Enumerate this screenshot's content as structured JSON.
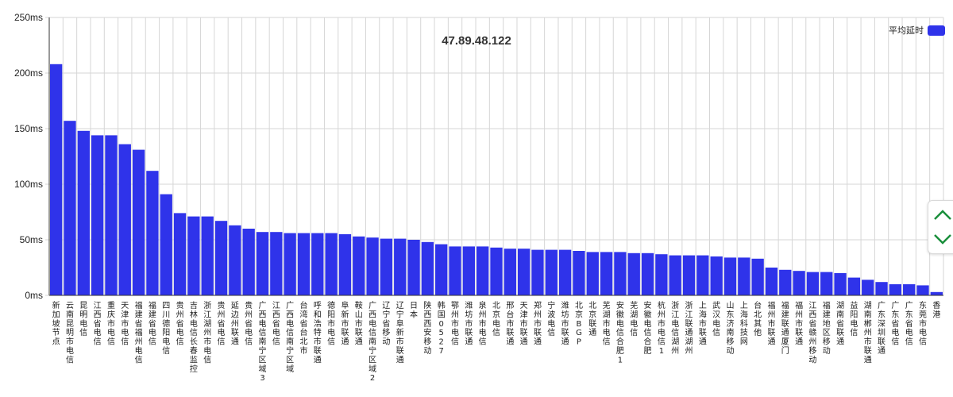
{
  "chart_data": {
    "type": "bar",
    "title": "47.89.48.122",
    "xlabel": "",
    "ylabel": "",
    "ylim": [
      0,
      250
    ],
    "yticks": [
      "0ms",
      "50ms",
      "100ms",
      "150ms",
      "200ms",
      "250ms"
    ],
    "grid": true,
    "legend_position": "top-right",
    "series": [
      {
        "name": "平均延时",
        "color": "#2f33ea",
        "values": [
          208,
          157,
          148,
          144,
          144,
          136,
          131,
          112,
          91,
          74,
          71,
          71,
          67,
          63,
          60,
          57,
          57,
          56,
          56,
          56,
          56,
          55,
          53,
          52,
          51,
          51,
          50,
          48,
          46,
          44,
          44,
          44,
          43,
          42,
          42,
          41,
          41,
          41,
          40,
          39,
          39,
          39,
          38,
          38,
          37,
          36,
          36,
          36,
          35,
          34,
          34,
          33,
          25,
          23,
          22,
          21,
          21,
          20,
          16,
          14,
          12,
          10,
          10,
          9,
          3
        ]
      }
    ],
    "categories": [
      "新加坡节点",
      "云南昆明市电信",
      "昆明电信",
      "江西省电信",
      "重庆市电信",
      "天津市电信",
      "福建省福州电信",
      "福建省电信",
      "四川德阳电信",
      "贵州省电信",
      "吉林电信长春监控",
      "浙江湖州市电信",
      "贵州省电信",
      "延边州联通",
      "贵州省电信",
      "广西电信南宁区域3",
      "江西省电信",
      "广西电信南宁区域",
      "台湾省台北市",
      "呼和浩特市联通",
      "德阳市电信",
      "阜新市联通",
      "鞍山市联通",
      "广西电信南宁区域2",
      "辽宁省移动",
      "辽宁阜新市联通",
      "日本",
      "陕西西安移动",
      "韩国0527",
      "鄂州市电信",
      "潍坊市联通",
      "泉州市电信",
      "北京电信",
      "邢台市联通",
      "天津市联通",
      "郑州市联通",
      "宁波电信",
      "潍坊市联通",
      "北京BGP",
      "北京联通",
      "芜湖市电信",
      "安徽电信合肥1",
      "芜湖电信",
      "安徽电信合肥",
      "杭州市电信1",
      "浙江电信湖州",
      "浙江联通湖州",
      "上海市联通",
      "武汉电信",
      "山东济南移动",
      "上海科技网",
      "台北其他",
      "福州市联通",
      "福建联通厦门",
      "福州市联通",
      "江西省赣州移动",
      "福建地区移动",
      "湖南省联通",
      "益阳电信",
      "湖南郴州市联通",
      "广东深圳联通",
      "广东省电信",
      "广东省电信",
      "东莞市电信",
      "香港"
    ]
  },
  "widget": {
    "up_icon": "chevron-up-icon",
    "down_icon": "chevron-down-icon",
    "accent": "#1a8f3c"
  }
}
